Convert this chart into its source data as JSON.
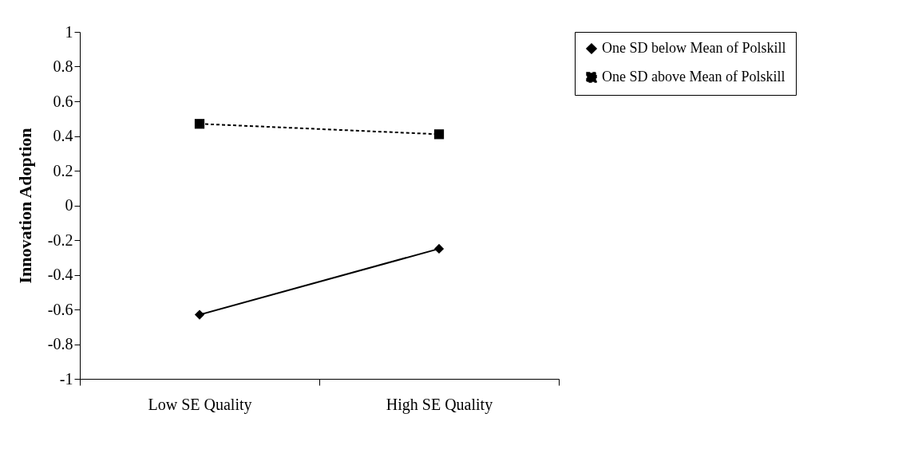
{
  "chart_data": {
    "type": "line",
    "ylabel": "Innovation Adoption",
    "categories": [
      "Low SE Quality",
      "High SE Quality"
    ],
    "series": [
      {
        "name": "One SD below Mean of Polskill",
        "color": "#000000",
        "values": [
          -0.63,
          -0.25
        ],
        "marker": "diamond",
        "line_style": "solid"
      },
      {
        "name": "One SD above Mean of Polskill",
        "color": "#000000",
        "values": [
          0.47,
          0.41
        ],
        "marker": "square",
        "line_style": "dashed"
      }
    ],
    "ylim": [
      -1,
      1
    ],
    "yticks": [
      -1,
      -0.8,
      -0.6,
      -0.4,
      -0.2,
      0,
      0.2,
      0.4,
      0.6,
      0.8,
      1
    ],
    "grid": false,
    "legend": "right"
  }
}
